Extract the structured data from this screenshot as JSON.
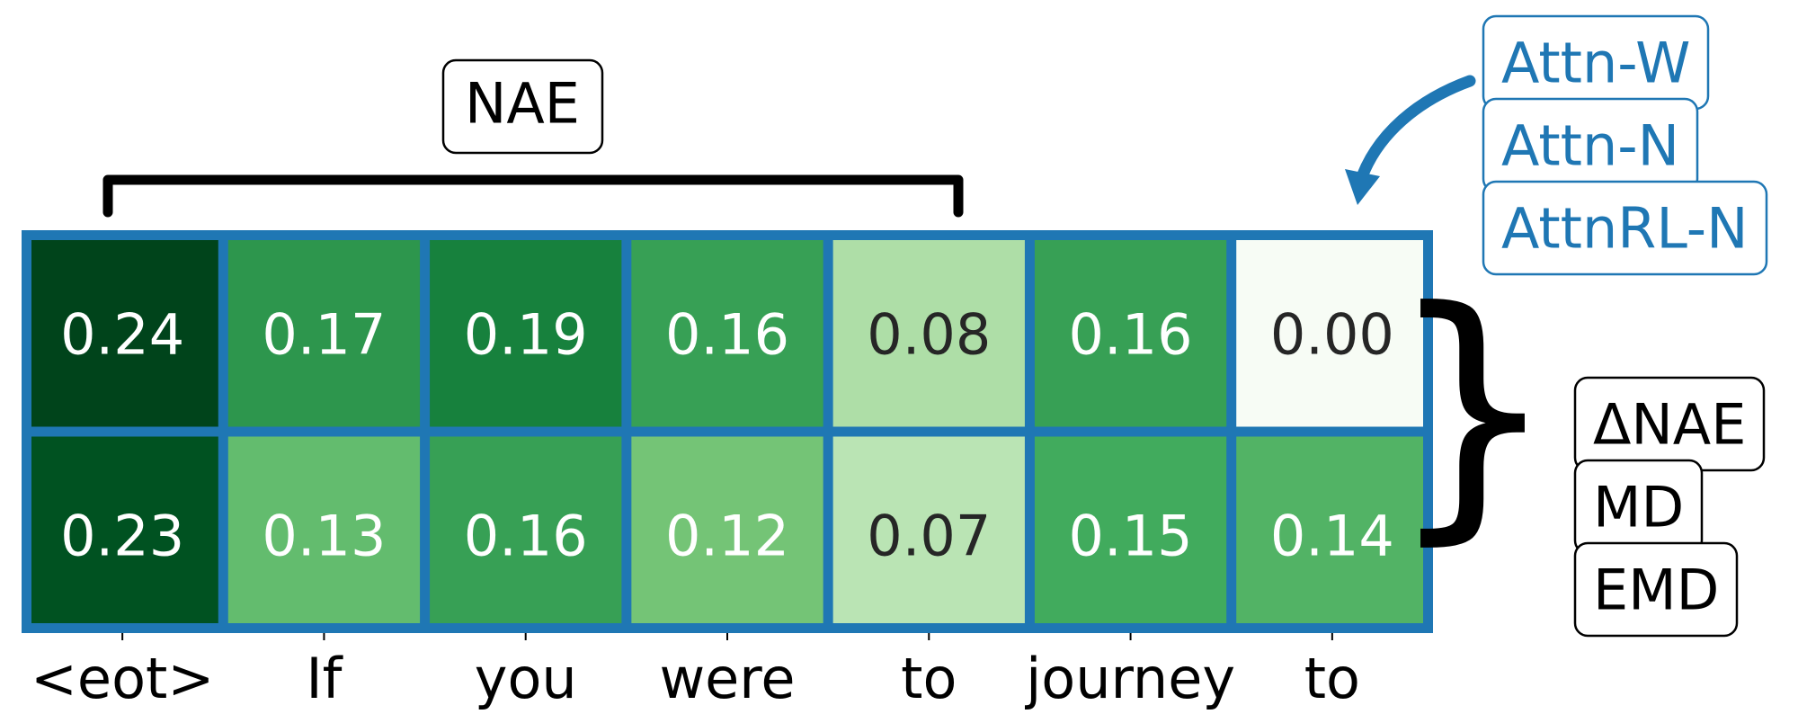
{
  "chart_data": {
    "type": "heatmap",
    "colormap": "Greens",
    "value_range": [
      0.0,
      0.24
    ],
    "x_labels": [
      "<eot>",
      "If",
      "you",
      "were",
      "to",
      "journey",
      "to"
    ],
    "rows": [
      {
        "values": [
          0.24,
          0.17,
          0.19,
          0.16,
          0.08,
          0.16,
          0.0
        ],
        "labels": [
          "0.24",
          "0.17",
          "0.19",
          "0.16",
          "0.08",
          "0.16",
          "0.00"
        ]
      },
      {
        "values": [
          0.23,
          0.13,
          0.16,
          0.12,
          0.07,
          0.15,
          0.14
        ],
        "labels": [
          "0.23",
          "0.13",
          "0.16",
          "0.12",
          "0.07",
          "0.15",
          "0.14"
        ]
      }
    ],
    "annotations": {
      "bracket_label": "NAE",
      "arrow_labels": [
        "Attn-W",
        "Attn-N",
        "AttnRL-N"
      ],
      "brace_labels": [
        "ΔNAE",
        "MD",
        "EMD"
      ]
    },
    "colors": {
      "frame": "#1f77b4",
      "annotation_text": "#1f77b4",
      "brace": "#000000"
    }
  }
}
